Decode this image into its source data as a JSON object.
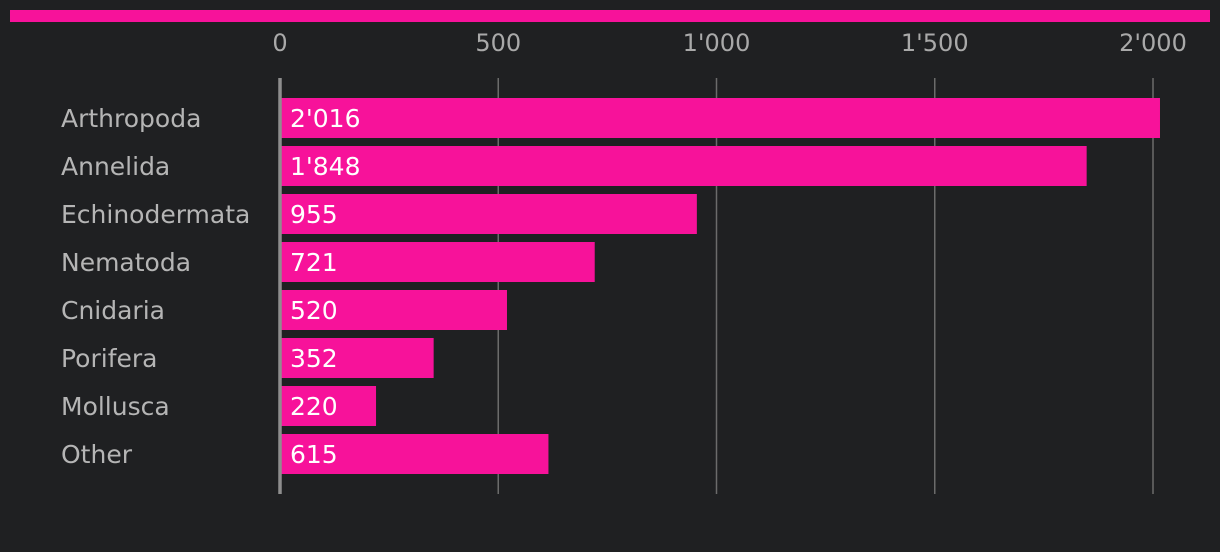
{
  "colors": {
    "background": "#1f2022",
    "accent": "#f7129a",
    "grid": "#6b6b6b",
    "axis": "#8e8e8e"
  },
  "chart_data": {
    "type": "bar",
    "orientation": "horizontal",
    "categories": [
      "Arthropoda",
      "Annelida",
      "Echinodermata",
      "Nematoda",
      "Cnidaria",
      "Porifera",
      "Mollusca",
      "Other"
    ],
    "values": [
      2016,
      1848,
      955,
      721,
      520,
      352,
      220,
      615
    ],
    "value_labels": [
      "2'016",
      "1'848",
      "955",
      "721",
      "520",
      "352",
      "220",
      "615"
    ],
    "x_ticks": [
      0,
      500,
      1000,
      1500,
      2000
    ],
    "x_tick_labels": [
      "0",
      "500",
      "1'000",
      "1'500",
      "2'000"
    ],
    "xlim": [
      0,
      2000
    ],
    "grid": true,
    "tick_position": "top",
    "legend": "none"
  }
}
